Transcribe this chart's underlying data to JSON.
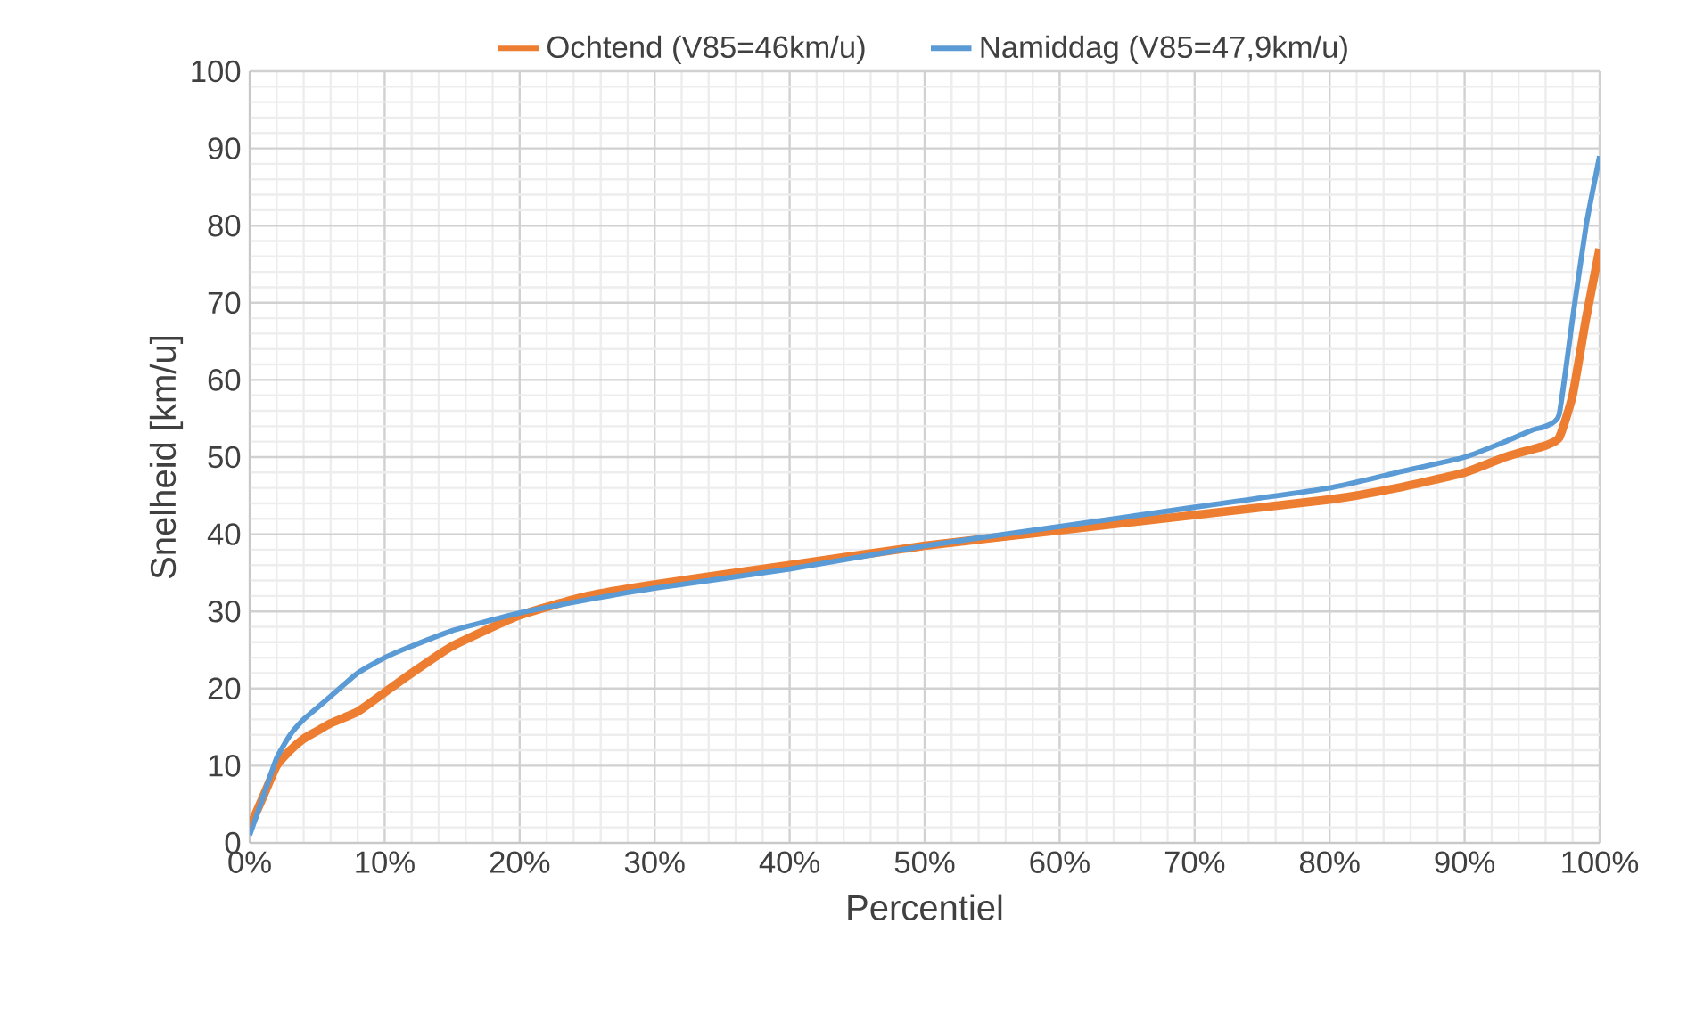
{
  "chart_data": {
    "type": "line",
    "xlabel": "Percentiel",
    "ylabel": "Snelheid [km/u]",
    "x": [
      0,
      1,
      2,
      3,
      4,
      5,
      6,
      8,
      10,
      12,
      15,
      20,
      25,
      30,
      40,
      50,
      60,
      70,
      80,
      85,
      90,
      93,
      95,
      96,
      97,
      98,
      99,
      100
    ],
    "series": [
      {
        "name": "Ochtend (V85=46km/u)",
        "color": "#ed7d31",
        "values": [
          2,
          6,
          10,
          12,
          13.5,
          14.5,
          15.5,
          17,
          19.5,
          22,
          25.5,
          29.5,
          32,
          33.5,
          36,
          38.5,
          40.5,
          42.5,
          44.5,
          46,
          48,
          50,
          51,
          51.5,
          52.5,
          58,
          68,
          77
        ]
      },
      {
        "name": "Namiddag (V85=47,9km/u)",
        "color": "#5b9bd5",
        "values": [
          1,
          6,
          11,
          14,
          16,
          17.5,
          19,
          22,
          24,
          25.5,
          27.5,
          29.8,
          31.5,
          33,
          35.5,
          38.5,
          41,
          43.5,
          46,
          48,
          50,
          52,
          53.5,
          54,
          55.5,
          68,
          80,
          89
        ]
      }
    ],
    "xlim": [
      0,
      100
    ],
    "ylim": [
      0,
      100
    ],
    "xticks": [
      {
        "value": 0,
        "label": "0%"
      },
      {
        "value": 10,
        "label": "10%"
      },
      {
        "value": 20,
        "label": "20%"
      },
      {
        "value": 30,
        "label": "30%"
      },
      {
        "value": 40,
        "label": "40%"
      },
      {
        "value": 50,
        "label": "50%"
      },
      {
        "value": 60,
        "label": "60%"
      },
      {
        "value": 70,
        "label": "70%"
      },
      {
        "value": 80,
        "label": "80%"
      },
      {
        "value": 90,
        "label": "90%"
      },
      {
        "value": 100,
        "label": "100%"
      }
    ],
    "yticks": [
      0,
      10,
      20,
      30,
      40,
      50,
      60,
      70,
      80,
      90,
      100
    ],
    "grid": true,
    "legend": "top",
    "marker": "none",
    "line_style": "solid"
  }
}
